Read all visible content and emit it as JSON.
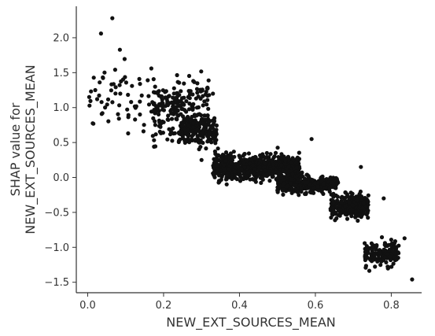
{
  "chart_data": {
    "type": "scatter",
    "title": "",
    "xlabel": "NEW_EXT_SOURCES_MEAN",
    "ylabel_lines": [
      "SHAP value for",
      "NEW_EXT_SOURCES_MEAN"
    ],
    "xlim": [
      -0.03,
      0.88
    ],
    "ylim": [
      -1.65,
      2.45
    ],
    "x_ticks": [
      0.0,
      0.2,
      0.4,
      0.6,
      0.8
    ],
    "x_tick_labels": [
      "0.0",
      "0.2",
      "0.4",
      "0.6",
      "0.8"
    ],
    "y_ticks": [
      -1.5,
      -1.0,
      -0.5,
      0.0,
      0.5,
      1.0,
      1.5,
      2.0
    ],
    "y_tick_labels": [
      "−1.5",
      "−1.0",
      "−0.5",
      "0.0",
      "0.5",
      "1.0",
      "1.5",
      "2.0"
    ],
    "grid": false,
    "point_color": "#111111",
    "trend": {
      "x": [
        0.0,
        0.1,
        0.2,
        0.3,
        0.35,
        0.45,
        0.55,
        0.62,
        0.7,
        0.75,
        0.8,
        0.85
      ],
      "y": [
        1.25,
        1.15,
        0.95,
        0.7,
        0.2,
        0.15,
        -0.05,
        -0.15,
        -0.4,
        -1.1,
        -1.1,
        -1.3
      ]
    },
    "clusters": [
      {
        "x_range": [
          0.0,
          0.17
        ],
        "y_center": 1.15,
        "y_spread": 0.5,
        "count": 60
      },
      {
        "x_range": [
          0.17,
          0.32
        ],
        "y_center": 0.95,
        "y_spread": 0.45,
        "count": 220
      },
      {
        "x_range": [
          0.24,
          0.34
        ],
        "y_center": 0.68,
        "y_spread": 0.2,
        "count": 180
      },
      {
        "x_range": [
          0.33,
          0.56
        ],
        "y_center": 0.15,
        "y_spread": 0.18,
        "count": 650
      },
      {
        "x_range": [
          0.5,
          0.66
        ],
        "y_center": -0.1,
        "y_spread": 0.12,
        "count": 380
      },
      {
        "x_range": [
          0.64,
          0.74
        ],
        "y_center": -0.4,
        "y_spread": 0.18,
        "count": 260
      },
      {
        "x_range": [
          0.73,
          0.82
        ],
        "y_center": -1.1,
        "y_spread": 0.18,
        "count": 150
      }
    ],
    "outliers": [
      {
        "x": 0.065,
        "y": 2.28
      },
      {
        "x": 0.035,
        "y": 2.06
      },
      {
        "x": 0.02,
        "y": 1.25
      },
      {
        "x": 0.015,
        "y": 0.77
      },
      {
        "x": 0.855,
        "y": -1.46
      },
      {
        "x": 0.835,
        "y": -0.87
      },
      {
        "x": 0.78,
        "y": -0.3
      },
      {
        "x": 0.72,
        "y": 0.15
      },
      {
        "x": 0.59,
        "y": 0.55
      },
      {
        "x": 0.33,
        "y": 1.2
      },
      {
        "x": 0.32,
        "y": 1.18
      },
      {
        "x": 0.3,
        "y": 0.25
      }
    ]
  }
}
